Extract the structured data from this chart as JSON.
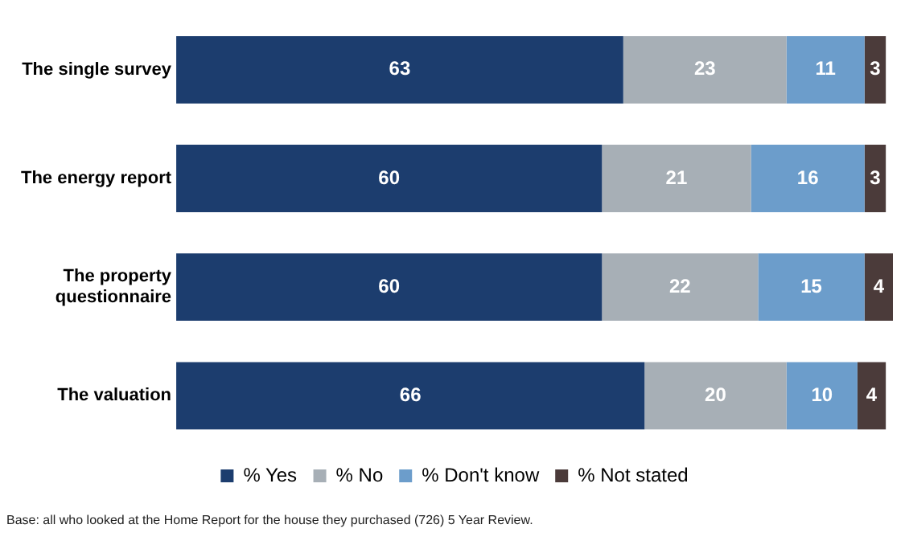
{
  "chart_data": {
    "type": "bar",
    "orientation": "horizontal",
    "stacked": true,
    "categories": [
      "The single survey",
      "The energy report",
      "The property questionnaire",
      "The valuation"
    ],
    "series": [
      {
        "name": "% Yes",
        "color": "#1c3d6e",
        "values": [
          63,
          60,
          60,
          66
        ]
      },
      {
        "name": "% No",
        "color": "#a7afb6",
        "values": [
          23,
          21,
          22,
          20
        ]
      },
      {
        "name": "% Don't know",
        "color": "#6c9dcb",
        "values": [
          11,
          16,
          15,
          10
        ]
      },
      {
        "name": "% Not stated",
        "color": "#4b3b3a",
        "values": [
          3,
          3,
          4,
          4
        ]
      }
    ],
    "xlim": [
      0,
      101
    ],
    "tick_labels": "y",
    "legend": "bottom",
    "data_labels": true,
    "annotations": [
      "Base: all who looked at the Home Report for the house they purchased (726) 5 Year  Review."
    ]
  }
}
